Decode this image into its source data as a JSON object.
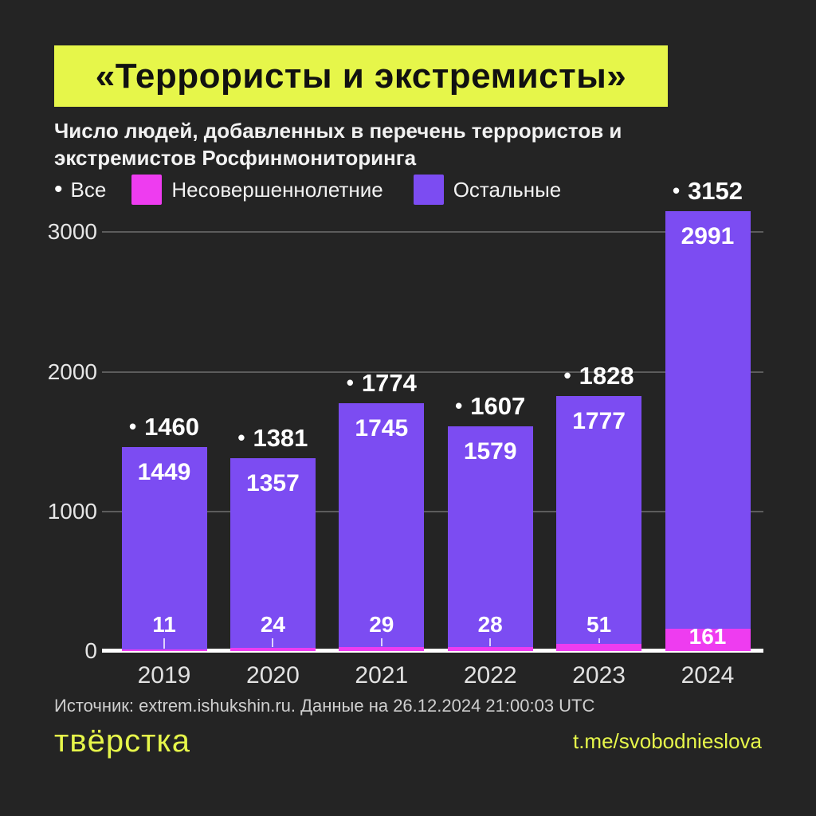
{
  "colors": {
    "background": "#242424",
    "accent_yellow": "#e6f64a",
    "magenta": "#ee3cf0",
    "purple": "#7c4cf2",
    "grid": "#5c5c5c",
    "axis_line": "#ffffff",
    "text": "#f2f2f2"
  },
  "icons": {
    "bullet": "•"
  },
  "header": {
    "title": "«Террористы и экстремисты»",
    "subtitle": "Число людей, добавленных в перечень террористов и экстремистов Росфинмониторинга"
  },
  "legend": {
    "all_label": "Все",
    "minors_label": "Несовершеннолетние",
    "others_label": "Остальные"
  },
  "chart_data": {
    "type": "bar",
    "stacked": true,
    "categories": [
      "2019",
      "2020",
      "2021",
      "2022",
      "2023",
      "2024"
    ],
    "series": [
      {
        "name": "Несовершеннолетние",
        "color_key": "magenta",
        "values": [
          11,
          24,
          29,
          28,
          51,
          161
        ]
      },
      {
        "name": "Остальные",
        "color_key": "purple",
        "values": [
          1449,
          1357,
          1745,
          1579,
          1777,
          2991
        ]
      }
    ],
    "totals": [
      1460,
      1381,
      1774,
      1607,
      1828,
      3152
    ],
    "y_ticks": [
      0,
      1000,
      2000,
      3000
    ],
    "ylim": [
      0,
      3320
    ],
    "grid": "horizontal",
    "legend_position": "top"
  },
  "footer": {
    "source": "Источник: extrem.ishukshin.ru. Данные на 26.12.2024 21:00:03 UTC",
    "logo": "твёрстка",
    "link": "t.me/svobodnieslova"
  }
}
